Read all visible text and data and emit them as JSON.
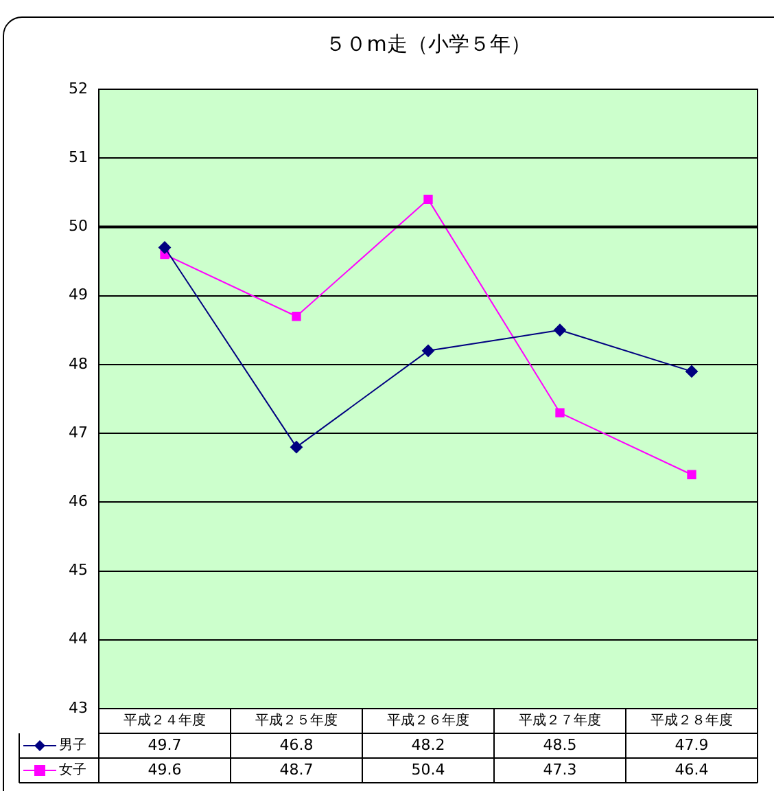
{
  "chart_data": {
    "type": "line",
    "title": "５０m走（小学５年）",
    "categories": [
      "平成２４年度",
      "平成２５年度",
      "平成２６年度",
      "平成２７年度",
      "平成２８年度"
    ],
    "series": [
      {
        "name": "男子",
        "color": "#000080",
        "marker": "diamond",
        "values": [
          49.7,
          46.8,
          48.2,
          48.5,
          47.9
        ]
      },
      {
        "name": "女子",
        "color": "#ff00ff",
        "marker": "square",
        "values": [
          49.6,
          48.7,
          50.4,
          47.3,
          46.4
        ]
      }
    ],
    "ylim": [
      43,
      52
    ],
    "yticks": [
      43,
      44,
      45,
      46,
      47,
      48,
      49,
      50,
      51,
      52
    ],
    "grid": "y",
    "ref_lines": [
      {
        "axis": "y",
        "value": 50,
        "color": "#000000"
      }
    ],
    "data_labels": true,
    "legend": "bottom"
  }
}
